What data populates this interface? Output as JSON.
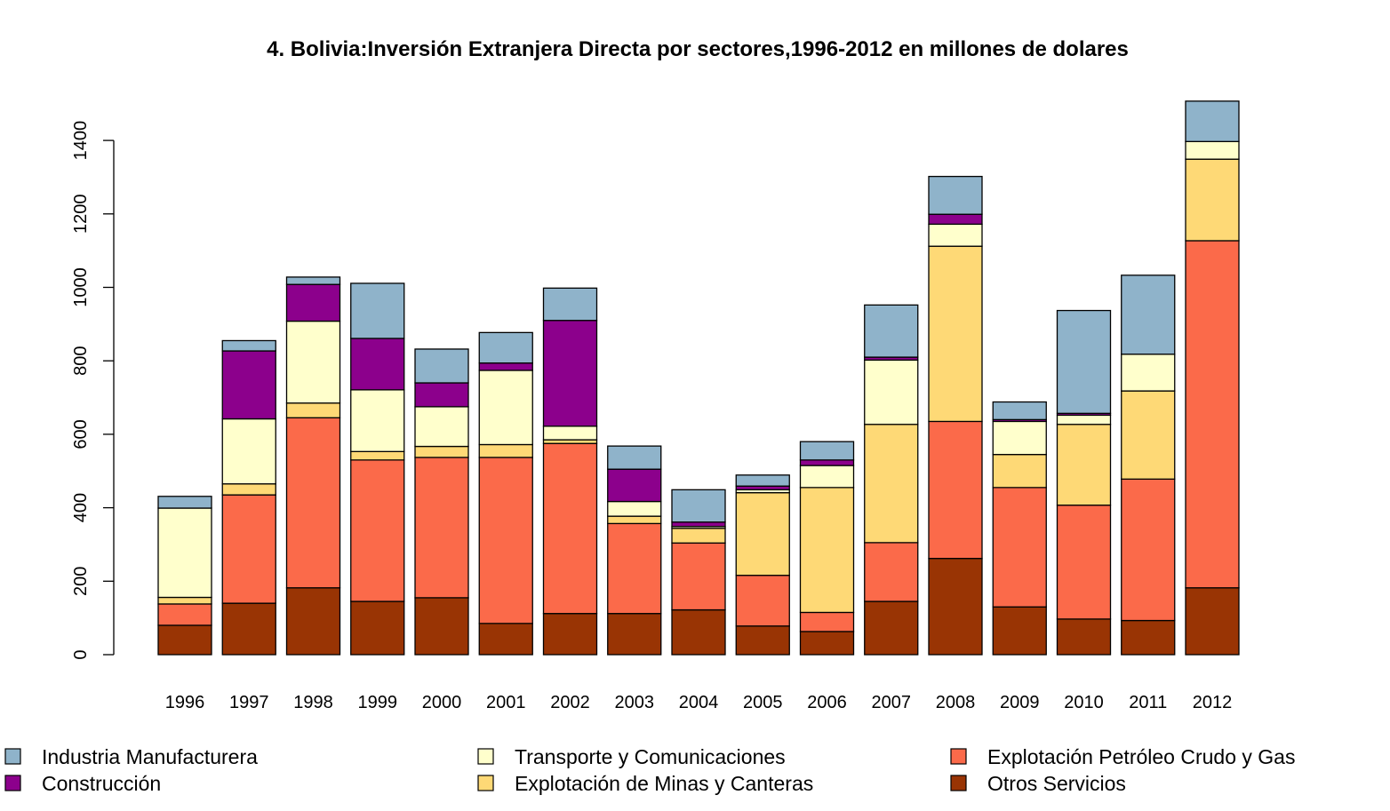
{
  "chart_data": {
    "type": "bar",
    "stacked": true,
    "title": "4. Bolivia:Inversión Extranjera Directa por sectores,1996-2012 en millones de dolares",
    "xlabel": "",
    "ylabel": "",
    "ylim": [
      0,
      1500
    ],
    "yticks": [
      "0",
      "200",
      "400",
      "600",
      "800",
      "1000",
      "1200",
      "1400"
    ],
    "yticks_values": [
      0,
      200,
      400,
      600,
      800,
      1000,
      1200,
      1400
    ],
    "grid": false,
    "legend_position": "bottom",
    "categories": [
      "1996",
      "1997",
      "1998",
      "1999",
      "2000",
      "2001",
      "2002",
      "2003",
      "2004",
      "2005",
      "2006",
      "2007",
      "2008",
      "2009",
      "2010",
      "2011",
      "2012"
    ],
    "series": [
      {
        "name": "Otros Servicios",
        "color": "#993404",
        "values": [
          80,
          140,
          182,
          145,
          155,
          85,
          112,
          112,
          122,
          78,
          63,
          145,
          262,
          130,
          97,
          93,
          182
        ]
      },
      {
        "name": "Explotación Petróleo Crudo y Gas",
        "color": "#FB6A4A",
        "values": [
          58,
          295,
          463,
          385,
          382,
          452,
          463,
          245,
          182,
          138,
          52,
          160,
          373,
          325,
          310,
          385,
          945
        ]
      },
      {
        "name": "Explotación de Minas y Canteras",
        "color": "#FED976",
        "values": [
          18,
          30,
          40,
          23,
          30,
          35,
          10,
          20,
          40,
          225,
          340,
          322,
          477,
          90,
          220,
          240,
          222
        ]
      },
      {
        "name": "Transporte y Comunicaciones",
        "color": "#FFFFCC",
        "values": [
          243,
          177,
          223,
          168,
          108,
          202,
          37,
          40,
          5,
          8,
          60,
          175,
          60,
          90,
          25,
          100,
          48
        ]
      },
      {
        "name": "Construcción",
        "color": "#8C008C",
        "values": [
          0,
          185,
          100,
          140,
          65,
          20,
          288,
          88,
          12,
          10,
          15,
          8,
          27,
          5,
          5,
          0,
          0
        ]
      },
      {
        "name": "Industria Manufacturera",
        "color": "#8FB3CA",
        "values": [
          32,
          28,
          20,
          150,
          92,
          83,
          88,
          63,
          88,
          30,
          50,
          142,
          103,
          48,
          280,
          215,
          110
        ]
      }
    ],
    "legend_order": [
      "Industria Manufacturera",
      "Construcción",
      "Transporte y Comunicaciones",
      "Explotación de Minas y Canteras",
      "Explotación Petróleo Crudo y Gas",
      "Otros Servicios"
    ]
  }
}
